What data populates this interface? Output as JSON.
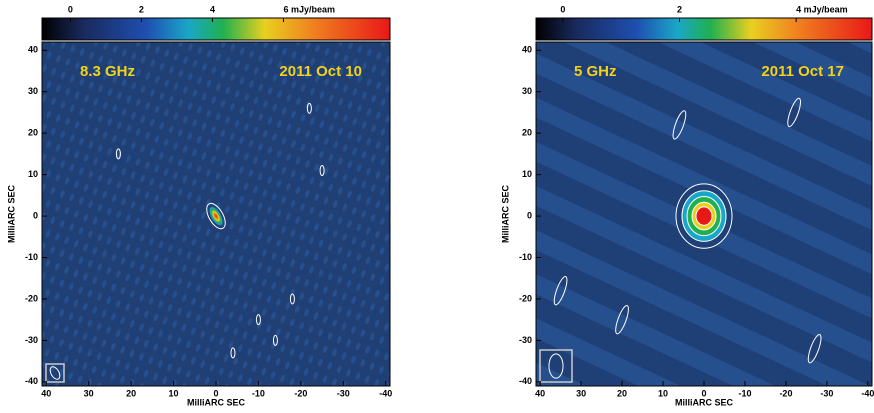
{
  "chart_data": [
    {
      "type": "image",
      "annotations": [
        "8.3 GHz",
        "2011 Oct 10"
      ],
      "x_label": "MilliARC SEC",
      "y_label": "MilliARC SEC",
      "xlim": [
        41,
        -41
      ],
      "ylim": [
        -41,
        42
      ],
      "xticks": [
        40,
        30,
        20,
        10,
        0,
        -10,
        -20,
        -30,
        -40
      ],
      "yticks": [
        -40,
        -30,
        -20,
        -10,
        0,
        10,
        20,
        30,
        40
      ],
      "colorbar": {
        "lim": [
          -0.8,
          9
        ],
        "ticks": [
          0,
          2,
          4,
          {
            "value": 6,
            "label": "6 mJy/beam"
          }
        ]
      }
    },
    {
      "type": "image",
      "annotations": [
        "5 GHz",
        "2011 Oct 17"
      ],
      "x_label": "MilliARC SEC",
      "y_label": "MilliARC SEC",
      "xlim": [
        41,
        -41
      ],
      "ylim": [
        -41,
        42
      ],
      "xticks": [
        40,
        30,
        20,
        10,
        0,
        -10,
        -20,
        -30,
        -40
      ],
      "yticks": [
        -40,
        -30,
        -20,
        -10,
        0,
        10,
        20,
        30,
        40
      ],
      "colorbar": {
        "lim": [
          -0.46,
          5.3
        ],
        "ticks": [
          0,
          2,
          {
            "value": 4,
            "label": "4 mJy/beam"
          }
        ]
      }
    }
  ]
}
